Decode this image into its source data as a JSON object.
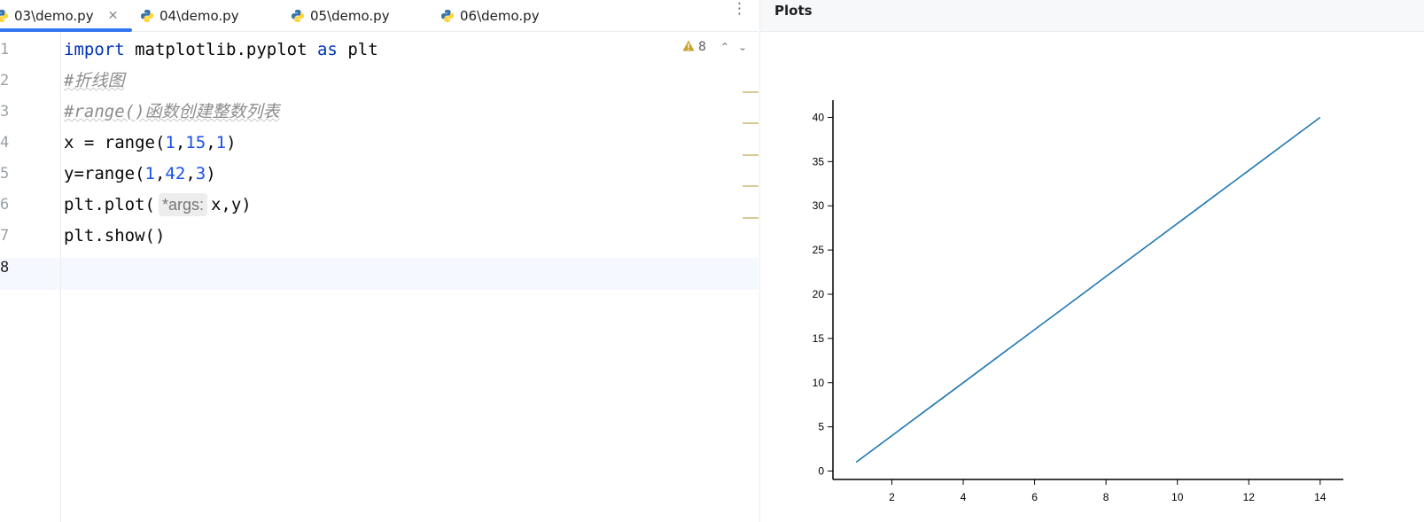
{
  "tabs": [
    {
      "label": "03\\demo.py",
      "active": true,
      "closable": true
    },
    {
      "label": "04\\demo.py",
      "active": false
    },
    {
      "label": "05\\demo.py",
      "active": false
    },
    {
      "label": "06\\demo.py",
      "active": false
    }
  ],
  "editor": {
    "line_numbers": [
      "1",
      "2",
      "3",
      "4",
      "5",
      "6",
      "7",
      "8"
    ],
    "current_line": "8",
    "lines": {
      "l1": {
        "kw1": "import",
        "mod": " matplotlib.pyplot ",
        "kw2": "as",
        "alias": " plt"
      },
      "l2": {
        "comment": "#折线图"
      },
      "l3": {
        "comment": "#range()函数创建整数列表"
      },
      "l4": {
        "a": "x = range(",
        "n1": "1",
        "c1": ",",
        "n2": "15",
        "c2": ",",
        "n3": "1",
        "b": ")"
      },
      "l5": {
        "a": "y=range(",
        "n1": "1",
        "c1": ",",
        "n2": "42",
        "c2": ",",
        "n3": "3",
        "b": ")"
      },
      "l6": {
        "a": "plt.plot(",
        "hint": "*args:",
        "b": "x,y)"
      },
      "l7": {
        "a": "plt.show()"
      }
    },
    "inspection": {
      "icon": "warning-icon",
      "count": "8",
      "color": "#c9a229"
    }
  },
  "plots": {
    "title": "Plots"
  },
  "chart_data": {
    "type": "line",
    "x": [
      1,
      2,
      3,
      4,
      5,
      6,
      7,
      8,
      9,
      10,
      11,
      12,
      13,
      14
    ],
    "series": [
      {
        "values": [
          1,
          4,
          7,
          10,
          13,
          16,
          19,
          22,
          25,
          28,
          31,
          34,
          37,
          40
        ],
        "color": "#1f77b4"
      }
    ],
    "xlim": [
      0.35,
      14.65
    ],
    "ylim": [
      -0.95,
      41.95
    ],
    "xticks": [
      2,
      4,
      6,
      8,
      10,
      12,
      14
    ],
    "yticks": [
      0,
      5,
      10,
      15,
      20,
      25,
      30,
      35,
      40
    ],
    "title": "",
    "xlabel": "",
    "ylabel": "",
    "grid": false
  },
  "colors": {
    "accent": "#3574f0",
    "keyword": "#0033b3",
    "number": "#1750eb",
    "comment": "#8c8c8c"
  }
}
